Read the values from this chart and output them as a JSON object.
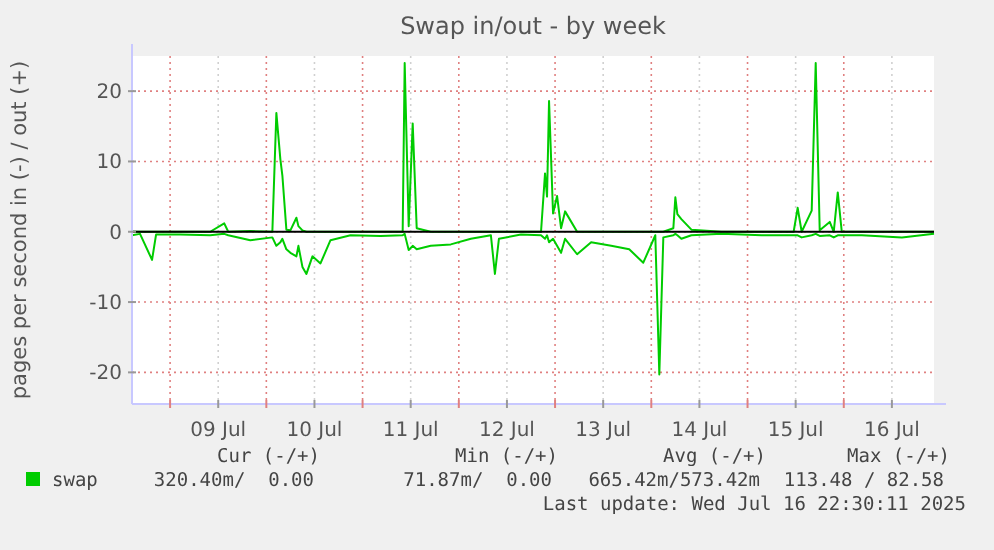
{
  "chart_data": {
    "type": "line",
    "title": "Swap in/out - by week",
    "ylabel": "pages per second in (-) / out (+)",
    "x": [
      "2025-07-08T14:30",
      "2025-07-08T16:30",
      "2025-07-08T19:30",
      "2025-07-08T20:30",
      "2025-07-09T02:30",
      "2025-07-09T10:00",
      "2025-07-09T13:30",
      "2025-07-09T14:30",
      "2025-07-09T20:00",
      "2025-07-10T01:30",
      "2025-07-10T02:30",
      "2025-07-10T03:30",
      "2025-07-10T04:00",
      "2025-07-10T05:00",
      "2025-07-10T06:00",
      "2025-07-10T07:30",
      "2025-07-10T08:00",
      "2025-07-10T09:00",
      "2025-07-10T10:00",
      "2025-07-10T11:30",
      "2025-07-10T13:30",
      "2025-07-10T16:00",
      "2025-07-10T21:00",
      "2025-07-11T04:30",
      "2025-07-11T10:00",
      "2025-07-11T10:30",
      "2025-07-11T11:30",
      "2025-07-11T12:30",
      "2025-07-11T13:30",
      "2025-07-11T17:00",
      "2025-07-11T22:00",
      "2025-07-12T03:00",
      "2025-07-12T08:00",
      "2025-07-12T09:00",
      "2025-07-12T10:00",
      "2025-07-12T15:30",
      "2025-07-12T20:30",
      "2025-07-12T21:30",
      "2025-07-12T22:00",
      "2025-07-12T22:30",
      "2025-07-12T23:30",
      "2025-07-13T00:30",
      "2025-07-13T01:30",
      "2025-07-13T02:30",
      "2025-07-13T05:30",
      "2025-07-13T09:00",
      "2025-07-13T14:00",
      "2025-07-13T18:30",
      "2025-07-13T22:00",
      "2025-07-14T01:00",
      "2025-07-14T02:00",
      "2025-07-14T03:00",
      "2025-07-14T05:30",
      "2025-07-14T06:00",
      "2025-07-14T06:30",
      "2025-07-14T07:30",
      "2025-07-14T10:00",
      "2025-07-14T17:30",
      "2025-07-15T03:30",
      "2025-07-15T11:30",
      "2025-07-15T12:30",
      "2025-07-15T13:30",
      "2025-07-15T16:00",
      "2025-07-15T17:00",
      "2025-07-15T18:00",
      "2025-07-15T20:30",
      "2025-07-15T21:30",
      "2025-07-15T22:30",
      "2025-07-15T23:30",
      "2025-07-16T04:30",
      "2025-07-16T14:30",
      "2025-07-16T22:30"
    ],
    "series": [
      {
        "name": "swap",
        "color": "#00cc00",
        "values": [
          0,
          0,
          0,
          0,
          0,
          0,
          1.2,
          0,
          0.1,
          0,
          16.9,
          10.3,
          8,
          0.3,
          0.2,
          2,
          0.8,
          0.2,
          0,
          0,
          0,
          0,
          0,
          0,
          0,
          24,
          0.8,
          15.4,
          0.5,
          0,
          0,
          0,
          0,
          0,
          0,
          0,
          0,
          8.3,
          5,
          18.6,
          2.6,
          5.1,
          0.5,
          2.9,
          0,
          0,
          0,
          0,
          0,
          0,
          0,
          0,
          0.5,
          4.9,
          2.5,
          1.8,
          0.3,
          0,
          0,
          0,
          3.4,
          0,
          3,
          24,
          0.2,
          1.4,
          0,
          5.6,
          0,
          0,
          0,
          0
        ]
      },
      {
        "color": "#00cc00",
        "values": [
          -0.5,
          -0.3,
          -4,
          -0.4,
          -0.4,
          -0.5,
          -0.3,
          -0.5,
          -1.2,
          -0.8,
          -2,
          -1.5,
          -1,
          -2.5,
          -3,
          -3.5,
          -2,
          -5,
          -6,
          -3.5,
          -4.5,
          -1.2,
          -0.5,
          -0.6,
          -0.5,
          -0.3,
          -2.6,
          -2,
          -2.5,
          -2,
          -1.8,
          -1,
          -0.5,
          -6,
          -1,
          -0.4,
          -0.5,
          -1,
          -0.5,
          -1.5,
          -1,
          -2,
          -3,
          -1,
          -3.2,
          -1.5,
          -2,
          -2.5,
          -4.4,
          -0.5,
          -20.3,
          -0.8,
          -0.5,
          -0.3,
          -0.5,
          -1,
          -0.5,
          -0.3,
          -0.5,
          -0.5,
          -0.5,
          -0.8,
          -0.5,
          -0.3,
          -0.6,
          -0.5,
          -0.8,
          -0.5,
          -0.5,
          -0.5,
          -0.8,
          -0.3
        ]
      }
    ],
    "xlim": [
      "2025-07-08T14:30",
      "2025-07-16T22:30"
    ],
    "xticks": [
      {
        "value": "2025-07-09T00:00",
        "label": null
      },
      {
        "value": "2025-07-09T12:00",
        "label": "09 Jul"
      },
      {
        "value": "2025-07-10T00:00",
        "label": null
      },
      {
        "value": "2025-07-10T12:00",
        "label": "10 Jul"
      },
      {
        "value": "2025-07-11T00:00",
        "label": null
      },
      {
        "value": "2025-07-11T12:00",
        "label": "11 Jul"
      },
      {
        "value": "2025-07-12T00:00",
        "label": null
      },
      {
        "value": "2025-07-12T12:00",
        "label": "12 Jul"
      },
      {
        "value": "2025-07-13T00:00",
        "label": null
      },
      {
        "value": "2025-07-13T12:00",
        "label": "13 Jul"
      },
      {
        "value": "2025-07-14T00:00",
        "label": null
      },
      {
        "value": "2025-07-14T12:00",
        "label": "14 Jul"
      },
      {
        "value": "2025-07-15T00:00",
        "label": null
      },
      {
        "value": "2025-07-15T12:00",
        "label": "15 Jul"
      },
      {
        "value": "2025-07-16T00:00",
        "label": null
      },
      {
        "value": "2025-07-16T12:00",
        "label": "16 Jul"
      }
    ],
    "ylim": [
      -24.5,
      25
    ],
    "yticks": [
      -20,
      -10,
      0,
      10,
      20
    ],
    "ref_lines": [
      {
        "axis": "y",
        "value": 0,
        "color": "#000000"
      }
    ],
    "grid": true,
    "legend": "bottom",
    "marker": "none",
    "line_style": "solid",
    "annotations": [
      "Cur (-/+)",
      "Min (-/+)",
      "Avg (-/+)",
      "Max (-/+)",
      "320.40m/  0.00",
      "71.87m/  0.00",
      "665.42m/573.42m",
      "113.48 / 82.58",
      "Last update: Wed Jul 16 22:30:11 2025"
    ]
  }
}
